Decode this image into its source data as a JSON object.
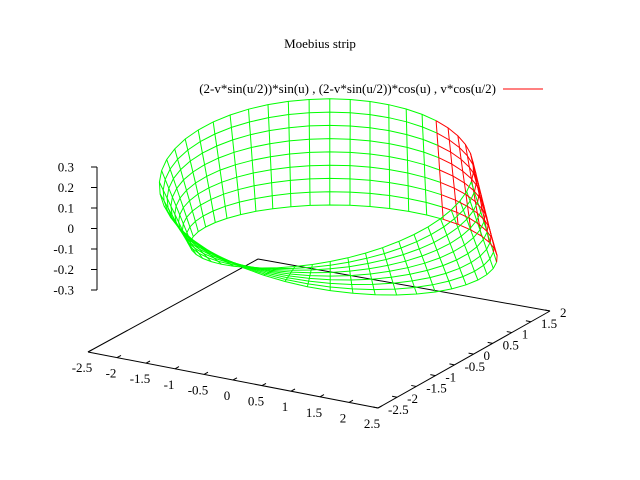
{
  "chart_data": {
    "type": "surface",
    "title": "Moebius strip",
    "series": [
      {
        "name": "(2-v*sin(u/2))*sin(u) , (2-v*sin(u/2))*cos(u) , v*cos(u/2)",
        "x_expr": "(2-v*sin(u/2))*sin(u)",
        "y_expr": "(2-v*sin(u/2))*cos(u)",
        "z_expr": "v*cos(u/2)",
        "u_range": [
          0,
          6.2832
        ],
        "v_range": [
          -0.25,
          0.25
        ],
        "u_samples": 48,
        "v_samples": 8,
        "color_front": "#00ff00",
        "color_back": "#ff0000"
      }
    ],
    "x_ticks": [
      "-2.5",
      "-2",
      "-1.5",
      "-1",
      "-0.5",
      "0",
      "0.5",
      "1",
      "1.5",
      "2",
      "2.5"
    ],
    "y_ticks": [
      "-2.5",
      "-2",
      "-1.5",
      "-1",
      "-0.5",
      "0",
      "0.5",
      "1",
      "1.5",
      "2"
    ],
    "z_ticks": [
      "0.3",
      "0.2",
      "0.1",
      "0",
      "-0.1",
      "-0.2",
      "-0.3"
    ],
    "x_range": [
      -2.5,
      2.5
    ],
    "y_range": [
      -2.5,
      2.0
    ],
    "z_range": [
      -0.3,
      0.3
    ],
    "legend_position": "top",
    "grid": false,
    "colors": {
      "axes": "#000000",
      "front": "#00ff00",
      "back": "#ff0000"
    }
  }
}
